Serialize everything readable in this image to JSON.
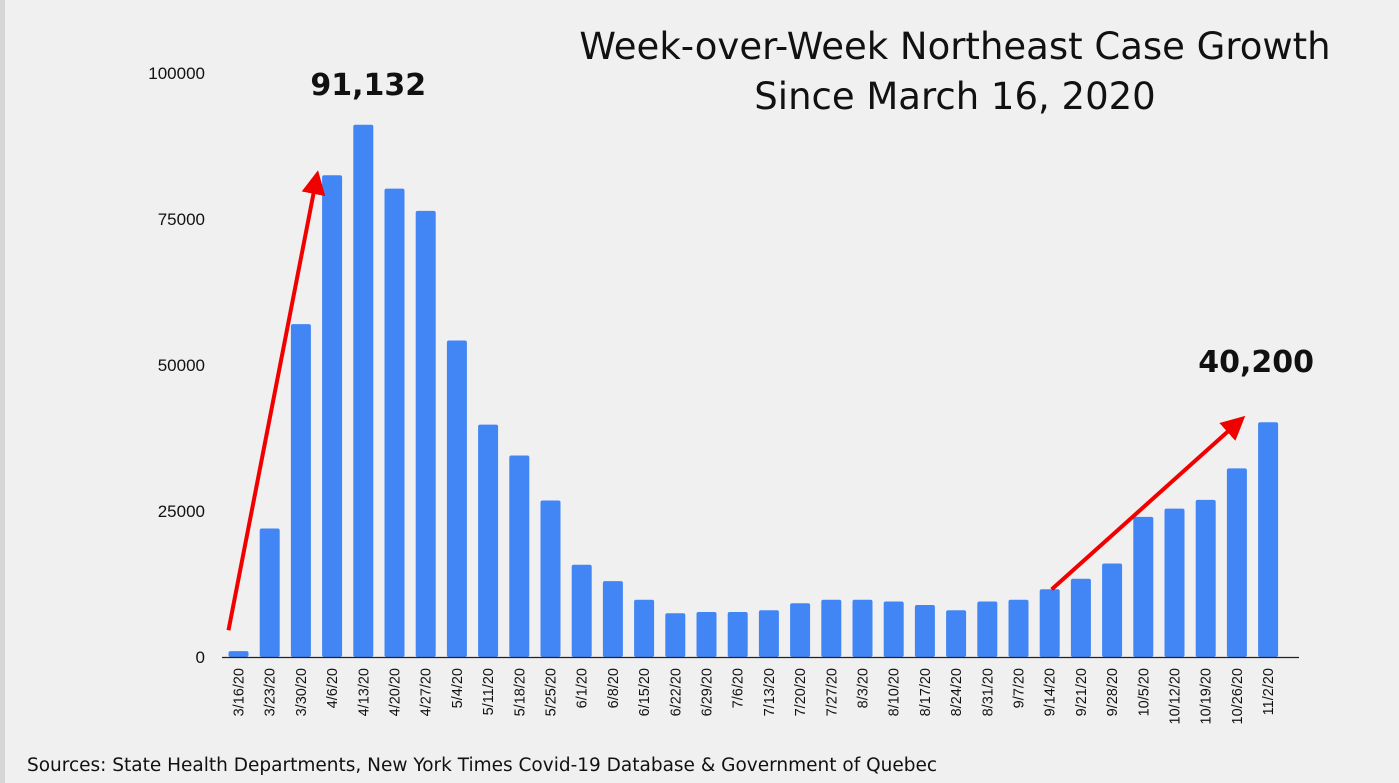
{
  "chart_data": {
    "type": "bar",
    "title": "Week-over-Week Northeast Case Growth",
    "subtitle": "Since March 16, 2020",
    "xlabel": "",
    "ylabel": "",
    "ylim": [
      0,
      100000
    ],
    "yticks": [
      "0",
      "25000",
      "50000",
      "75000",
      "100000"
    ],
    "grid": false,
    "bar_color": "#4285f4",
    "categories": [
      "3/16/20",
      "3/23/20",
      "3/30/20",
      "4/6/20",
      "4/13/20",
      "4/20/20",
      "4/27/20",
      "5/4/20",
      "5/11/20",
      "5/18/20",
      "5/25/20",
      "6/1/20",
      "6/8/20",
      "6/15/20",
      "6/22/20",
      "6/29/20",
      "7/6/20",
      "7/13/20",
      "7/20/20",
      "7/27/20",
      "8/3/20",
      "8/10/20",
      "8/17/20",
      "8/24/20",
      "8/31/20",
      "9/7/20",
      "9/14/20",
      "9/21/20",
      "9/28/20",
      "10/5/20",
      "10/12/20",
      "10/19/20",
      "10/26/20",
      "11/2/20"
    ],
    "values": [
      1000,
      22000,
      57000,
      82500,
      91132,
      80200,
      76400,
      54200,
      39800,
      34500,
      26800,
      15800,
      13000,
      9800,
      7500,
      7700,
      7700,
      8000,
      9200,
      9800,
      9800,
      9500,
      8900,
      8000,
      9500,
      9800,
      11600,
      13400,
      16000,
      24000,
      25400,
      26900,
      32300,
      40200
    ],
    "annotations": [
      {
        "text": "91,132",
        "category": "4/13/20",
        "arrow_from": {
          "x": "3/16/20",
          "y": 8000
        },
        "arrow_to": {
          "x": "3/30/20",
          "y": 89000
        }
      },
      {
        "text": "40,200",
        "category": "11/2/20",
        "arrow_from": {
          "x": "9/14/20",
          "y": 15000
        },
        "arrow_to": {
          "x": "10/26/20",
          "y": 40000
        }
      }
    ],
    "arrow_color": "#f10000"
  },
  "footer": {
    "source": "Sources: State Health Departments, New York Times Covid-19 Database & Government of Quebec"
  }
}
